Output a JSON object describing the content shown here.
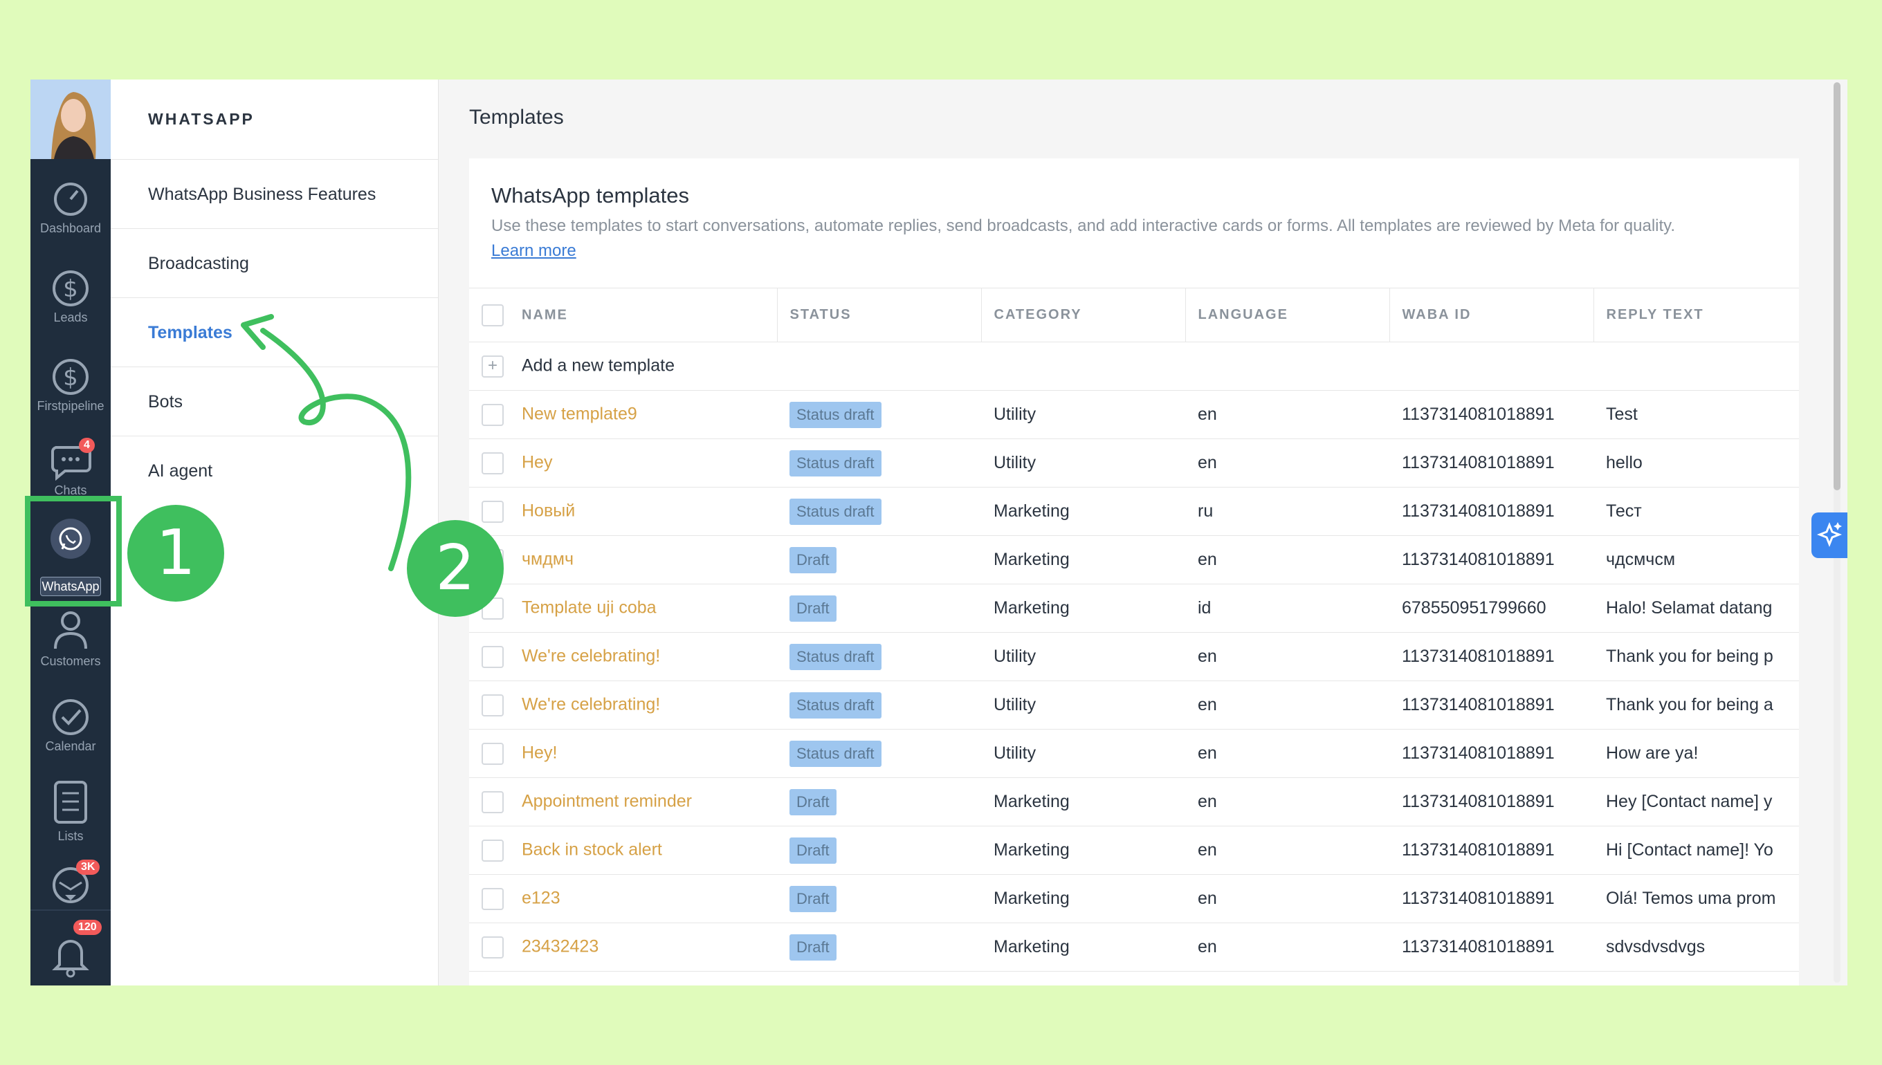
{
  "rail": {
    "items": [
      {
        "label": "Dashboard",
        "icon": "gauge-icon"
      },
      {
        "label": "Leads",
        "icon": "dollar-icon"
      },
      {
        "label": "Firstpipeline",
        "icon": "dollar-icon"
      },
      {
        "label": "Chats",
        "icon": "chat-icon",
        "badge": "4"
      },
      {
        "label": "WhatsApp",
        "icon": "whatsapp-icon"
      },
      {
        "label": "Customers",
        "icon": "person-icon"
      },
      {
        "label": "Calendar",
        "icon": "check-icon"
      },
      {
        "label": "Lists",
        "icon": "list-icon"
      },
      {
        "label": "",
        "icon": "mail-icon",
        "badge": "3K"
      },
      {
        "label": "",
        "icon": "bell-icon",
        "badge": "120"
      }
    ]
  },
  "subnav": {
    "title": "WHATSAPP",
    "items": [
      {
        "label": "WhatsApp Business Features"
      },
      {
        "label": "Broadcasting"
      },
      {
        "label": "Templates",
        "active": true
      },
      {
        "label": "Bots"
      },
      {
        "label": "AI agent"
      }
    ]
  },
  "main": {
    "page_title": "Templates",
    "card_title": "WhatsApp templates",
    "card_desc": "Use these templates to start conversations, automate replies, send broadcasts, and add interactive cards or forms. All templates are reviewed by Meta for quality.",
    "learn_more": "Learn more"
  },
  "table": {
    "columns": [
      "NAME",
      "STATUS",
      "CATEGORY",
      "LANGUAGE",
      "WABA ID",
      "REPLY TEXT"
    ],
    "add_label": "Add a new template",
    "rows": [
      {
        "name": "New template9",
        "status": "Status draft",
        "category": "Utility",
        "language": "en",
        "waba": "1137314081018891",
        "reply": "Test"
      },
      {
        "name": "Hey",
        "status": "Status draft",
        "category": "Utility",
        "language": "en",
        "waba": "1137314081018891",
        "reply": "hello"
      },
      {
        "name": "Новый",
        "status": "Status draft",
        "category": "Marketing",
        "language": "ru",
        "waba": "1137314081018891",
        "reply": "Тест"
      },
      {
        "name": "чмдмч",
        "status": "Draft",
        "category": "Marketing",
        "language": "en",
        "waba": "1137314081018891",
        "reply": "чдсмчсм"
      },
      {
        "name": "Template uji coba",
        "status": "Draft",
        "category": "Marketing",
        "language": "id",
        "waba": "678550951799660",
        "reply": "Halo! Selamat datang"
      },
      {
        "name": "We're celebrating!",
        "status": "Status draft",
        "category": "Utility",
        "language": "en",
        "waba": "1137314081018891",
        "reply": "Thank you for being p"
      },
      {
        "name": "We're celebrating!",
        "status": "Status draft",
        "category": "Utility",
        "language": "en",
        "waba": "1137314081018891",
        "reply": "Thank you for being a"
      },
      {
        "name": "Hey!",
        "status": "Status draft",
        "category": "Utility",
        "language": "en",
        "waba": "1137314081018891",
        "reply": "How are ya!"
      },
      {
        "name": "Appointment reminder",
        "status": "Draft",
        "category": "Marketing",
        "language": "en",
        "waba": "1137314081018891",
        "reply": "Hey [Contact name] y"
      },
      {
        "name": "Back in stock alert",
        "status": "Draft",
        "category": "Marketing",
        "language": "en",
        "waba": "1137314081018891",
        "reply": "Hi [Contact name]! Yo"
      },
      {
        "name": "e123",
        "status": "Draft",
        "category": "Marketing",
        "language": "en",
        "waba": "1137314081018891",
        "reply": "Olá! Temos uma prom"
      },
      {
        "name": "23432423",
        "status": "Draft",
        "category": "Marketing",
        "language": "en",
        "waba": "1137314081018891",
        "reply": "sdvsdvsdvgs"
      }
    ]
  },
  "steps": {
    "one": "1",
    "two": "2"
  },
  "colors": {
    "accent": "#3fbf5e",
    "link": "#3a7bd5",
    "name_text": "#d6a146",
    "status_pill": "#9ec6ef",
    "rail": "#1f2d3d"
  }
}
